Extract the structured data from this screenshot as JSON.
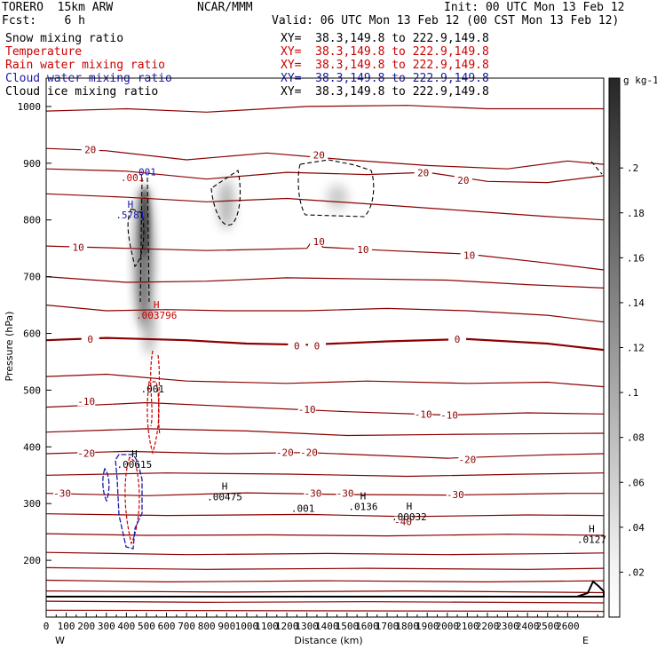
{
  "header": {
    "model": "TORERO  15km ARW",
    "org": "NCAR/MMM",
    "init": "Init: 00 UTC Mon 13 Feb 12",
    "fcst": "Fcst:    6 h",
    "valid": "Valid: 06 UTC Mon 13 Feb 12 (00 CST Mon 13 Feb 12)"
  },
  "legend": [
    {
      "name": "Snow mixing ratio",
      "xy": "XY=  38.3,149.8 to 222.9,149.8",
      "color": "#000000"
    },
    {
      "name": "Temperature",
      "xy": "XY=  38.3,149.8 to 222.9,149.8",
      "color": "#cc0000"
    },
    {
      "name": "Rain water mixing ratio",
      "xy": "XY=  38.3,149.8 to 222.9,149.8",
      "color": "#cc0000"
    },
    {
      "name": "Cloud water mixing ratio",
      "xy": "XY=  38.3,149.8 to 222.9,149.8",
      "color": "#1a1aa8"
    },
    {
      "name": "Cloud ice mixing ratio",
      "xy": "XY=  38.3,149.8 to 222.9,149.8",
      "color": "#000000"
    }
  ],
  "chart_data": {
    "type": "cross-section",
    "xlabel": "Distance (km)",
    "ylabel": "Pressure (hPa)",
    "x_ticks": [
      0,
      100,
      200,
      300,
      400,
      500,
      600,
      700,
      800,
      900,
      1000,
      1100,
      1200,
      1300,
      1400,
      1500,
      1600,
      1700,
      1800,
      1900,
      2000,
      2100,
      2200,
      2300,
      2400,
      2500,
      2600
    ],
    "xlim": [
      0,
      2780
    ],
    "y_ticks": [
      200,
      300,
      400,
      500,
      600,
      700,
      800,
      900,
      1000
    ],
    "ylim": [
      1050,
      100
    ],
    "x_end_labels": {
      "west": "W",
      "east": "E"
    },
    "colorbar": {
      "unit": "g kg-1",
      "ticks": [
        ".02",
        ".04",
        ".06",
        ".08",
        ".1",
        ".12",
        ".14",
        ".16",
        ".18",
        ".2"
      ],
      "range": [
        0,
        0.24
      ]
    },
    "temperature_labels": [
      {
        "text": "-30",
        "x": 80,
        "p": 318
      },
      {
        "text": "-30",
        "x": 1330,
        "p": 318
      },
      {
        "text": "-30",
        "x": 1490,
        "p": 318
      },
      {
        "text": "-30",
        "x": 2040,
        "p": 316
      },
      {
        "text": "-40",
        "x": 1780,
        "p": 268
      },
      {
        "text": "-20",
        "x": 200,
        "p": 389
      },
      {
        "text": "-20",
        "x": 1190,
        "p": 390
      },
      {
        "text": "-20",
        "x": 1310,
        "p": 390
      },
      {
        "text": "-20",
        "x": 2100,
        "p": 378
      },
      {
        "text": "-10",
        "x": 200,
        "p": 480
      },
      {
        "text": "-10",
        "x": 1300,
        "p": 466
      },
      {
        "text": "-10",
        "x": 1880,
        "p": 458
      },
      {
        "text": "-10",
        "x": 2010,
        "p": 456
      },
      {
        "text": "0",
        "x": 220,
        "p": 590
      },
      {
        "text": "0",
        "x": 1250,
        "p": 578
      },
      {
        "text": "0",
        "x": 1350,
        "p": 578
      },
      {
        "text": "0",
        "x": 2050,
        "p": 590
      },
      {
        "text": "10",
        "x": 160,
        "p": 752
      },
      {
        "text": "10",
        "x": 1360,
        "p": 762
      },
      {
        "text": "10",
        "x": 1580,
        "p": 748
      },
      {
        "text": "10",
        "x": 2110,
        "p": 738
      },
      {
        "text": "20",
        "x": 220,
        "p": 924
      },
      {
        "text": "20",
        "x": 1360,
        "p": 915
      },
      {
        "text": "20",
        "x": 1880,
        "p": 883
      },
      {
        "text": "20",
        "x": 2080,
        "p": 870
      }
    ],
    "maxima": [
      {
        "label": "H",
        "value": ".00615",
        "x": 440,
        "p": 372,
        "color": "#000000"
      },
      {
        "label": "",
        "value": ".001",
        "x": 530,
        "p": 505,
        "color": "#000000"
      },
      {
        "label": "H",
        "value": ".00475",
        "x": 890,
        "p": 315,
        "color": "#000000"
      },
      {
        "label": "",
        "value": ".001",
        "x": 1280,
        "p": 295,
        "color": "#000000"
      },
      {
        "label": "H",
        "value": ".0136",
        "x": 1580,
        "p": 298,
        "color": "#000000"
      },
      {
        "label": "H",
        "value": ".00032",
        "x": 1810,
        "p": 280,
        "color": "#000000"
      },
      {
        "label": "H",
        "value": ".0127",
        "x": 2720,
        "p": 240,
        "color": "#000000"
      },
      {
        "label": "H",
        "value": ".003796",
        "x": 550,
        "p": 635,
        "color": "#cc0000"
      },
      {
        "label": "H",
        "value": ".5781",
        "x": 420,
        "p": 812,
        "color": "#1a1aa8"
      },
      {
        "label": "",
        "value": ".001",
        "x": 430,
        "p": 878,
        "color": "#cc0000"
      },
      {
        "label": "",
        "value": ".001",
        "x": 490,
        "p": 888,
        "color": "#1a1aa8"
      }
    ]
  }
}
